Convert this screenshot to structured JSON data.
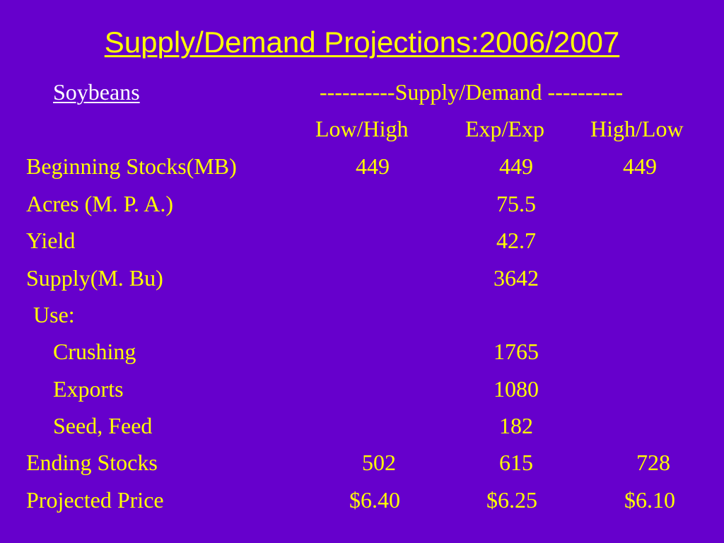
{
  "title": "Supply/Demand Projections:2006/2007",
  "commodity": "Soybeans",
  "group_header": "----------Supply/Demand ----------",
  "columns": [
    "Low/High",
    "Exp/Exp",
    "High/Low"
  ],
  "rows": [
    {
      "label": "Beginning Stocks(MB)",
      "values": [
        "449",
        "449",
        "449"
      ]
    },
    {
      "label": "Acres (M. P. A.)",
      "values": [
        "",
        "75.5",
        ""
      ]
    },
    {
      "label": "Yield",
      "values": [
        "",
        "42.7",
        ""
      ]
    },
    {
      "label": "Supply(M. Bu)",
      "values": [
        "",
        "3642",
        ""
      ]
    },
    {
      "label": "Use:",
      "values": [
        "",
        "",
        ""
      ]
    },
    {
      "label": "Crushing",
      "values": [
        "",
        "1765",
        ""
      ]
    },
    {
      "label": "Exports",
      "values": [
        "",
        "1080",
        ""
      ]
    },
    {
      "label": "Seed, Feed",
      "values": [
        "",
        "182",
        ""
      ]
    },
    {
      "label": "Ending Stocks",
      "values": [
        "502",
        "615",
        "728"
      ]
    },
    {
      "label": "Projected Price",
      "values": [
        "$6.40",
        "$6.25",
        "$6.10"
      ]
    }
  ],
  "colors": {
    "background": "#6600cc",
    "title": "#ffff00",
    "soybeans": "#ffffff",
    "table_text": "#ffff00"
  }
}
